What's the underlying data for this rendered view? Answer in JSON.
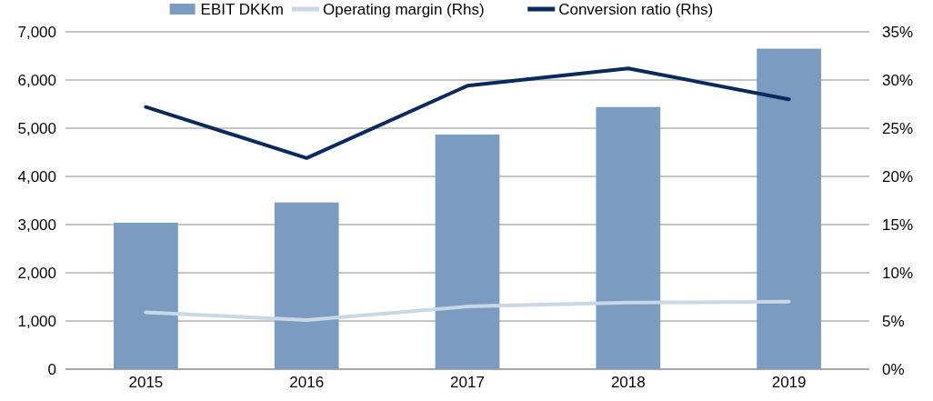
{
  "chart_data": {
    "type": "bar",
    "categories": [
      "2015",
      "2016",
      "2017",
      "2018",
      "2019"
    ],
    "series": [
      {
        "name": "EBIT DKKm",
        "color": "#7b9cc0",
        "values": [
          3040,
          3460,
          4870,
          5440,
          6650
        ]
      },
      {
        "name": "Operating margin (Rhs)",
        "type": "line",
        "axis": "y2",
        "color": "#c9d7e6",
        "values": [
          5.9,
          5.1,
          6.5,
          6.9,
          7.0
        ]
      },
      {
        "name": "Conversion ratio (Rhs)",
        "type": "line",
        "axis": "y2",
        "color": "#0a2a5e",
        "values": [
          27.2,
          21.9,
          29.4,
          31.2,
          28.0
        ]
      }
    ],
    "ylim": [
      0,
      7000
    ],
    "yticks": [
      {
        "value": 0,
        "label": "0"
      },
      {
        "value": 1000,
        "label": "1,000"
      },
      {
        "value": 2000,
        "label": "2,000"
      },
      {
        "value": 3000,
        "label": "3,000"
      },
      {
        "value": 4000,
        "label": "4,000"
      },
      {
        "value": 5000,
        "label": "5,000"
      },
      {
        "value": 6000,
        "label": "6,000"
      },
      {
        "value": 7000,
        "label": "7,000"
      }
    ],
    "y2lim": [
      0,
      35
    ],
    "y2ticks": [
      {
        "value": 0,
        "label": "0%"
      },
      {
        "value": 5,
        "label": "5%"
      },
      {
        "value": 10,
        "label": "10%"
      },
      {
        "value": 15,
        "label": "15%"
      },
      {
        "value": 20,
        "label": "20%"
      },
      {
        "value": 25,
        "label": "25%"
      },
      {
        "value": 30,
        "label": "30%"
      },
      {
        "value": 35,
        "label": "35%"
      }
    ],
    "grid": "y",
    "legend": "top",
    "line_style": "solid",
    "marker": "none"
  }
}
